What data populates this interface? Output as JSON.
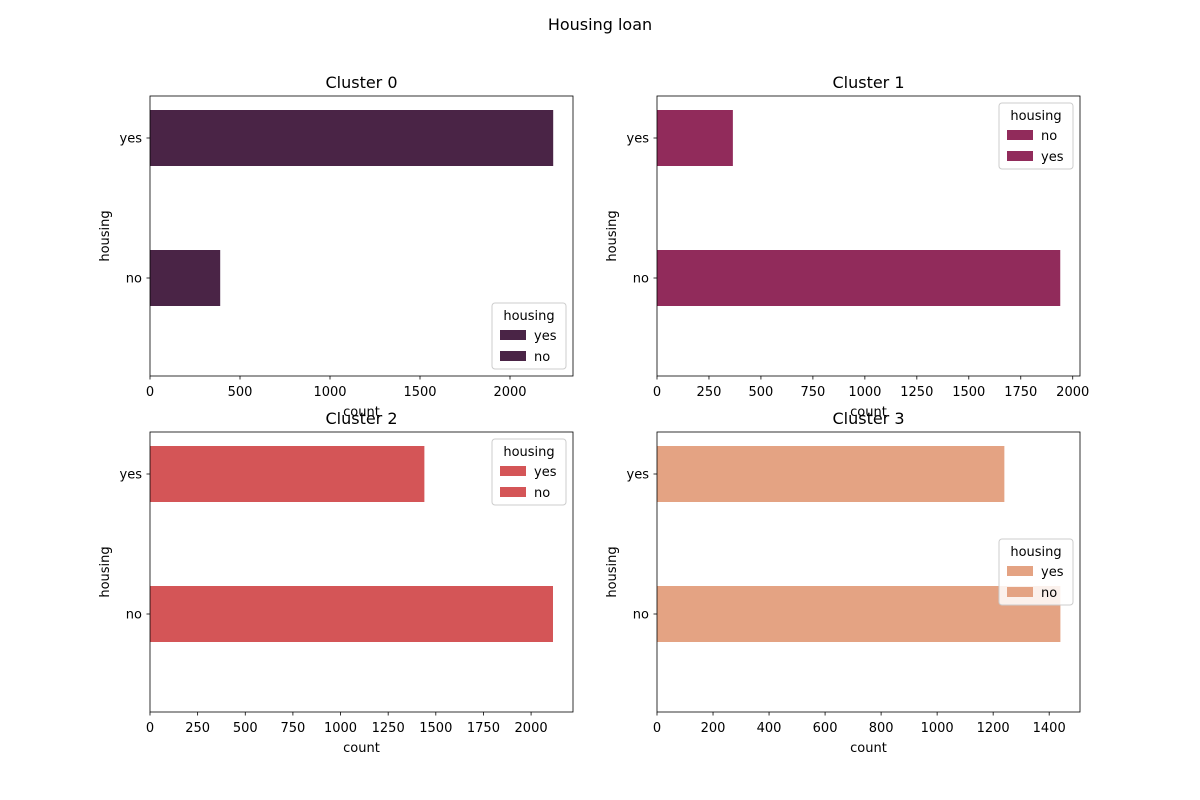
{
  "figure": {
    "title": "Housing loan"
  },
  "chart_data": [
    {
      "type": "bar",
      "orientation": "horizontal",
      "title": "Cluster 0",
      "xlabel": "count",
      "ylabel": "housing",
      "categories": [
        "yes",
        "no"
      ],
      "values": [
        2240,
        390
      ],
      "xlim": [
        0,
        2350
      ],
      "xticks": [
        0,
        500,
        1000,
        1500,
        2000
      ],
      "color": "#4a2446",
      "legend": {
        "title": "housing",
        "entries": [
          "yes",
          "no"
        ],
        "placement": "lower right"
      }
    },
    {
      "type": "bar",
      "orientation": "horizontal",
      "title": "Cluster 1",
      "xlabel": "count",
      "ylabel": "housing",
      "categories": [
        "yes",
        "no"
      ],
      "values": [
        365,
        1940
      ],
      "xlim": [
        0,
        2035
      ],
      "xticks": [
        0,
        250,
        500,
        750,
        1000,
        1250,
        1500,
        1750,
        2000
      ],
      "color": "#912b5b",
      "legend": {
        "title": "housing",
        "entries": [
          "no",
          "yes"
        ],
        "placement": "upper right"
      }
    },
    {
      "type": "bar",
      "orientation": "horizontal",
      "title": "Cluster 2",
      "xlabel": "count",
      "ylabel": "housing",
      "categories": [
        "yes",
        "no"
      ],
      "values": [
        1440,
        2115
      ],
      "xlim": [
        0,
        2220
      ],
      "xticks": [
        0,
        250,
        500,
        750,
        1000,
        1250,
        1500,
        1750,
        2000
      ],
      "color": "#d45557",
      "legend": {
        "title": "housing",
        "entries": [
          "yes",
          "no"
        ],
        "placement": "upper right"
      }
    },
    {
      "type": "bar",
      "orientation": "horizontal",
      "title": "Cluster 3",
      "xlabel": "count",
      "ylabel": "housing",
      "categories": [
        "yes",
        "no"
      ],
      "values": [
        1240,
        1440
      ],
      "xlim": [
        0,
        1510
      ],
      "xticks": [
        0,
        200,
        400,
        600,
        800,
        1000,
        1200,
        1400
      ],
      "color": "#e4a383",
      "legend": {
        "title": "housing",
        "entries": [
          "yes",
          "no"
        ],
        "placement": "center right"
      }
    }
  ]
}
